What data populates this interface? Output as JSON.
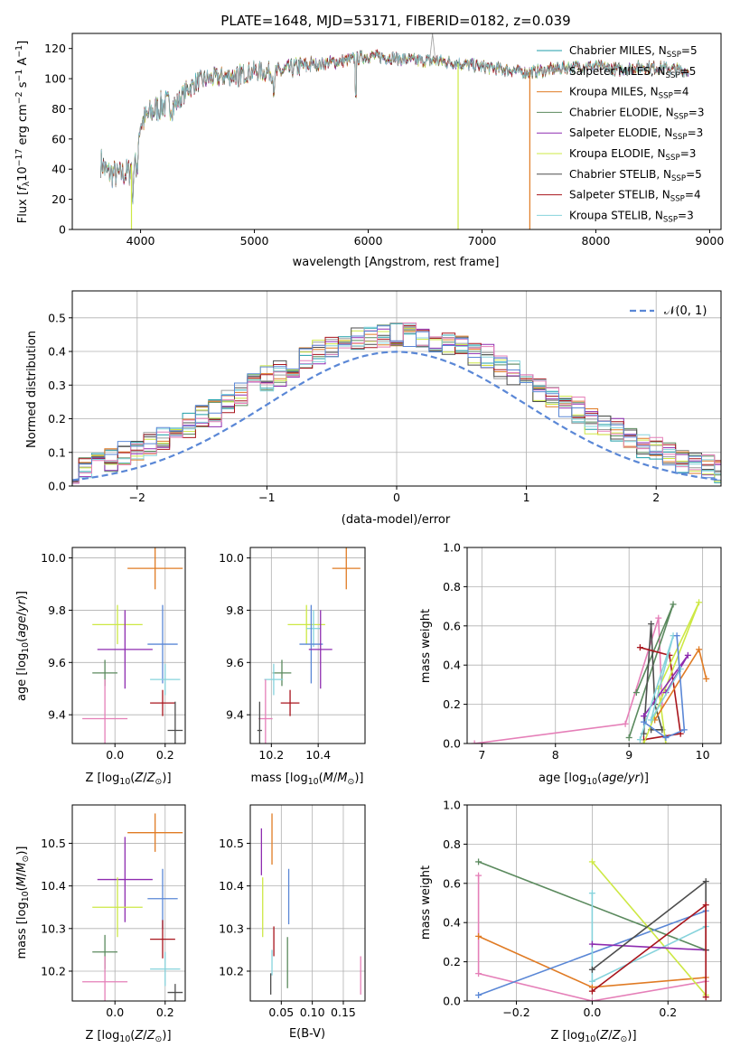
{
  "title": "PLATE=1648, MJD=53171, FIBERID=0182, z=0.039",
  "colors": {
    "Chabrier MILES": "#1f9ea8",
    "Salpeter MILES": "#9c9c9c",
    "Kroupa MILES": "#e07b24",
    "Chabrier ELODIE": "#5b8a5e",
    "Salpeter ELODIE": "#8e2cb0",
    "Kroupa ELODIE": "#cde844",
    "Chabrier STELIB": "#4d4d4d",
    "Salpeter STELIB": "#a8141c",
    "Kroupa STELIB": "#86d3dc",
    "pink": "#e57fb8",
    "blue": "#5a87d6"
  },
  "chart_data": [
    {
      "type": "line",
      "name": "spectrum",
      "xlabel": "wavelength [Angstrom, rest frame]",
      "ylabel": "Flux [f_λ 10⁻¹⁷ erg cm⁻² s⁻¹ A⁻¹]",
      "xlim": [
        3400,
        9100
      ],
      "ylim": [
        0,
        130
      ],
      "xticks": [
        4000,
        5000,
        6000,
        7000,
        8000,
        9000
      ],
      "yticks": [
        0,
        20,
        40,
        60,
        80,
        100,
        120
      ],
      "grid": false,
      "legend_position": "top-right",
      "legend": [
        {
          "label": "Chabrier MILES, N",
          "sub": "SSP",
          "tail": "=5",
          "color": "#1f9ea8"
        },
        {
          "label": "Salpeter MILES, N",
          "sub": "SSP",
          "tail": "=5",
          "color": "#9c9c9c"
        },
        {
          "label": "Kroupa MILES, N",
          "sub": "SSP",
          "tail": "=4",
          "color": "#e07b24"
        },
        {
          "label": "Chabrier ELODIE, N",
          "sub": "SSP",
          "tail": "=3",
          "color": "#5b8a5e"
        },
        {
          "label": "Salpeter ELODIE, N",
          "sub": "SSP",
          "tail": "=3",
          "color": "#8e2cb0"
        },
        {
          "label": "Kroupa ELODIE, N",
          "sub": "SSP",
          "tail": "=3",
          "color": "#cde844"
        },
        {
          "label": "Chabrier STELIB, N",
          "sub": "SSP",
          "tail": "=5",
          "color": "#4d4d4d"
        },
        {
          "label": "Salpeter STELIB, N",
          "sub": "SSP",
          "tail": "=4",
          "color": "#a8141c"
        },
        {
          "label": "Kroupa STELIB, N",
          "sub": "SSP",
          "tail": "=3",
          "color": "#86d3dc"
        }
      ],
      "continuum": [
        [
          3650,
          45
        ],
        [
          3700,
          38
        ],
        [
          3800,
          36
        ],
        [
          3900,
          38
        ],
        [
          3950,
          50
        ],
        [
          4000,
          70
        ],
        [
          4100,
          78
        ],
        [
          4200,
          83
        ],
        [
          4300,
          82
        ],
        [
          4400,
          92
        ],
        [
          4500,
          98
        ],
        [
          4600,
          100
        ],
        [
          4800,
          102
        ],
        [
          5000,
          105
        ],
        [
          5200,
          104
        ],
        [
          5400,
          108
        ],
        [
          5600,
          110
        ],
        [
          5800,
          112
        ],
        [
          6000,
          115
        ],
        [
          6200,
          114
        ],
        [
          6400,
          112
        ],
        [
          6600,
          112
        ],
        [
          6800,
          110
        ],
        [
          7000,
          108
        ],
        [
          7200,
          106
        ],
        [
          7400,
          104
        ],
        [
          7600,
          106
        ],
        [
          7800,
          108
        ],
        [
          8000,
          108
        ],
        [
          8200,
          106
        ],
        [
          8400,
          108
        ],
        [
          8600,
          107
        ],
        [
          8820,
          105
        ]
      ],
      "dropouts": [
        {
          "x": 3920,
          "color": "#cde844"
        },
        {
          "x": 6790,
          "color": "#cde844"
        },
        {
          "x": 7420,
          "color": "#e07b24"
        }
      ],
      "spike": {
        "x": 6565,
        "y": 130
      }
    },
    {
      "type": "histogram",
      "name": "residuals",
      "xlabel": "(data-model)/error",
      "ylabel": "Normed distribution",
      "xlim": [
        -2.5,
        2.5
      ],
      "ylim": [
        0,
        0.58
      ],
      "xticks": [
        -2,
        -1,
        0,
        1,
        2
      ],
      "yticks": [
        0.0,
        0.1,
        0.2,
        0.3,
        0.4,
        0.5
      ],
      "grid": true,
      "legend": "𝒩(0, 1)",
      "reference_color": "#5a87d6"
    },
    {
      "type": "scatter",
      "name": "age-vs-Z",
      "xlabel": "Z [log₁₀(Z/Z⊙)]",
      "ylabel": "age  [log₁₀(age/yr)]",
      "xlim": [
        -0.17,
        0.28
      ],
      "ylim": [
        9.29,
        10.04
      ],
      "xticks": [
        0.0,
        0.2
      ],
      "yticks": [
        9.4,
        9.6,
        9.8,
        10.0
      ],
      "grid": true,
      "points": [
        {
          "color": "#e07b24",
          "x": 0.16,
          "xerr": 0.11,
          "y": 9.96,
          "yerr": 0.08
        },
        {
          "color": "#cde844",
          "x": 0.01,
          "xerr": 0.1,
          "y": 9.745,
          "yerr": 0.075
        },
        {
          "color": "#8e2cb0",
          "x": 0.04,
          "xerr": 0.11,
          "y": 9.65,
          "yerr": 0.15
        },
        {
          "color": "#5a87d6",
          "x": 0.19,
          "xerr": 0.06,
          "y": 9.67,
          "yerr": 0.15
        },
        {
          "color": "#5b8a5e",
          "x": -0.04,
          "xerr": 0.05,
          "y": 9.56,
          "yerr": 0.05
        },
        {
          "color": "#86d3dc",
          "x": 0.2,
          "xerr": 0.06,
          "y": 9.535,
          "yerr": 0.06
        },
        {
          "color": "#a8141c",
          "x": 0.19,
          "xerr": 0.05,
          "y": 9.445,
          "yerr": 0.05
        },
        {
          "color": "#e57fb8",
          "x": -0.04,
          "xerr": 0.09,
          "y": 9.385,
          "yerr": 0.15
        },
        {
          "color": "#4d4d4d",
          "x": 0.24,
          "xerr": 0.03,
          "y": 9.34,
          "yerr": 0.11
        }
      ]
    },
    {
      "type": "scatter",
      "name": "age-vs-mass",
      "xlabel": "mass [log₁₀(M/M⊙)]",
      "ylabel": "",
      "xlim": [
        10.11,
        10.6
      ],
      "ylim": [
        9.29,
        10.04
      ],
      "xticks": [
        10.2,
        10.4
      ],
      "yticks": [
        9.4,
        9.6,
        9.8,
        10.0
      ],
      "grid": true,
      "points": [
        {
          "color": "#e07b24",
          "x": 10.52,
          "xerr": 0.06,
          "y": 9.96,
          "yerr": 0.08
        },
        {
          "color": "#cde844",
          "x": 10.35,
          "xerr": 0.08,
          "y": 9.745,
          "yerr": 0.075
        },
        {
          "color": "#86d3dc",
          "x": 10.38,
          "xerr": 0.03,
          "y": 9.73,
          "yerr": 0.07
        },
        {
          "color": "#5a87d6",
          "x": 10.37,
          "xerr": 0.05,
          "y": 9.67,
          "yerr": 0.15
        },
        {
          "color": "#8e2cb0",
          "x": 10.41,
          "xerr": 0.05,
          "y": 9.65,
          "yerr": 0.15
        },
        {
          "color": "#5b8a5e",
          "x": 10.245,
          "xerr": 0.04,
          "y": 9.56,
          "yerr": 0.05
        },
        {
          "color": "#86d3dc",
          "x": 10.21,
          "xerr": 0.04,
          "y": 9.535,
          "yerr": 0.06
        },
        {
          "color": "#a8141c",
          "x": 10.28,
          "xerr": 0.04,
          "y": 9.445,
          "yerr": 0.05
        },
        {
          "color": "#e57fb8",
          "x": 10.175,
          "xerr": 0.03,
          "y": 9.385,
          "yerr": 0.15
        },
        {
          "color": "#4d4d4d",
          "x": 10.15,
          "xerr": 0.01,
          "y": 9.34,
          "yerr": 0.11
        }
      ]
    },
    {
      "type": "line",
      "name": "mass-weight-vs-age",
      "xlabel": "age  [log₁₀(age/yr)]",
      "ylabel": "mass weight",
      "xlim": [
        6.8,
        10.25
      ],
      "ylim": [
        0,
        1.0
      ],
      "xticks": [
        7,
        8,
        9,
        10
      ],
      "yticks": [
        0.0,
        0.2,
        0.4,
        0.6,
        0.8,
        1.0
      ],
      "grid": true,
      "series": [
        {
          "color": "#e57fb8",
          "points": [
            [
              6.9,
              0.0
            ],
            [
              8.95,
              0.1
            ],
            [
              9.4,
              0.64
            ],
            [
              9.45,
              0.2
            ]
          ]
        },
        {
          "color": "#5b8a5e",
          "points": [
            [
              9.0,
              0.03
            ],
            [
              9.6,
              0.71
            ],
            [
              9.1,
              0.26
            ]
          ]
        },
        {
          "color": "#4d4d4d",
          "points": [
            [
              9.2,
              0.05
            ],
            [
              9.3,
              0.61
            ],
            [
              9.35,
              0.2
            ],
            [
              9.45,
              0.07
            ],
            [
              9.3,
              0.07
            ]
          ]
        },
        {
          "color": "#a8141c",
          "points": [
            [
              9.15,
              0.49
            ],
            [
              9.55,
              0.45
            ],
            [
              9.7,
              0.05
            ],
            [
              9.2,
              0.02
            ]
          ]
        },
        {
          "color": "#cde844",
          "points": [
            [
              9.2,
              0.0
            ],
            [
              9.95,
              0.72
            ],
            [
              9.4,
              0.28
            ],
            [
              9.5,
              0.0
            ]
          ]
        },
        {
          "color": "#e07b24",
          "points": [
            [
              9.35,
              0.12
            ],
            [
              9.95,
              0.48
            ],
            [
              10.05,
              0.33
            ]
          ]
        },
        {
          "color": "#8e2cb0",
          "points": [
            [
              9.2,
              0.14
            ],
            [
              9.8,
              0.45
            ],
            [
              9.5,
              0.26
            ]
          ]
        },
        {
          "color": "#86d3dc",
          "points": [
            [
              9.15,
              0.02
            ],
            [
              9.6,
              0.55
            ],
            [
              9.3,
              0.12
            ],
            [
              9.7,
              0.38
            ]
          ]
        },
        {
          "color": "#5a87d6",
          "points": [
            [
              9.2,
              0.11
            ],
            [
              9.5,
              0.03
            ],
            [
              9.75,
              0.07
            ],
            [
              9.65,
              0.55
            ]
          ]
        }
      ]
    },
    {
      "type": "scatter",
      "name": "mass-vs-Z",
      "xlabel": "Z [log₁₀(Z/Z⊙)]",
      "ylabel": "mass [log₁₀(M/M⊙)]",
      "xlim": [
        -0.17,
        0.28
      ],
      "ylim": [
        10.13,
        10.59
      ],
      "xticks": [
        0.0,
        0.2
      ],
      "yticks": [
        10.2,
        10.3,
        10.4,
        10.5
      ],
      "grid": true,
      "points": [
        {
          "color": "#e07b24",
          "x": 0.16,
          "xerr": 0.11,
          "y": 10.525,
          "yerr": 0.045
        },
        {
          "color": "#8e2cb0",
          "x": 0.04,
          "xerr": 0.11,
          "y": 10.415,
          "yerr": 0.1
        },
        {
          "color": "#5a87d6",
          "x": 0.19,
          "xerr": 0.06,
          "y": 10.37,
          "yerr": 0.07
        },
        {
          "color": "#cde844",
          "x": 0.01,
          "xerr": 0.1,
          "y": 10.35,
          "yerr": 0.07
        },
        {
          "color": "#a8141c",
          "x": 0.19,
          "xerr": 0.05,
          "y": 10.275,
          "yerr": 0.045
        },
        {
          "color": "#5b8a5e",
          "x": -0.04,
          "xerr": 0.05,
          "y": 10.245,
          "yerr": 0.04
        },
        {
          "color": "#86d3dc",
          "x": 0.2,
          "xerr": 0.06,
          "y": 10.205,
          "yerr": 0.04
        },
        {
          "color": "#e57fb8",
          "x": -0.04,
          "xerr": 0.09,
          "y": 10.175,
          "yerr": 0.06
        },
        {
          "color": "#4d4d4d",
          "x": 0.24,
          "xerr": 0.03,
          "y": 10.15,
          "yerr": 0.02
        }
      ]
    },
    {
      "type": "scatter",
      "name": "mass-vs-EBV",
      "xlabel": "E(B-V)",
      "ylabel": "",
      "xlim": [
        0.0,
        0.185
      ],
      "ylim": [
        10.13,
        10.59
      ],
      "xticks": [
        0.05,
        0.1,
        0.15
      ],
      "xticklabels": [
        "0.05",
        "0.10",
        "0.15"
      ],
      "yticks": [
        10.2,
        10.3,
        10.4,
        10.5
      ],
      "grid": true,
      "points": [
        {
          "color": "#8e2cb0",
          "x": 0.018,
          "y": 10.48,
          "yerr": 0.055
        },
        {
          "color": "#cde844",
          "x": 0.02,
          "y": 10.35,
          "yerr": 0.07
        },
        {
          "color": "#e07b24",
          "x": 0.035,
          "y": 10.51,
          "yerr": 0.06
        },
        {
          "color": "#a8141c",
          "x": 0.038,
          "y": 10.27,
          "yerr": 0.035
        },
        {
          "color": "#86d3dc",
          "x": 0.035,
          "y": 10.22,
          "yerr": 0.03
        },
        {
          "color": "#4d4d4d",
          "x": 0.033,
          "y": 10.17,
          "yerr": 0.025
        },
        {
          "color": "#5b8a5e",
          "x": 0.06,
          "y": 10.22,
          "yerr": 0.06
        },
        {
          "color": "#5a87d6",
          "x": 0.062,
          "y": 10.375,
          "yerr": 0.065
        },
        {
          "color": "#e57fb8",
          "x": 0.178,
          "y": 10.19,
          "yerr": 0.045
        }
      ]
    },
    {
      "type": "line",
      "name": "mass-weight-vs-Z",
      "xlabel": "Z [log₁₀(Z/Z⊙)]",
      "ylabel": "mass weight",
      "xlim": [
        -0.33,
        0.34
      ],
      "ylim": [
        0,
        1.0
      ],
      "xticks": [
        -0.2,
        0.0,
        0.2
      ],
      "yticks": [
        0.0,
        0.2,
        0.4,
        0.6,
        0.8,
        1.0
      ],
      "grid": true,
      "series": [
        {
          "color": "#5b8a5e",
          "points": [
            [
              -0.3,
              0.71
            ],
            [
              0.3,
              0.26
            ]
          ]
        },
        {
          "color": "#e57fb8",
          "points": [
            [
              -0.3,
              0.64
            ],
            [
              -0.3,
              0.14
            ],
            [
              0.0,
              0.0
            ],
            [
              0.3,
              0.1
            ]
          ]
        },
        {
          "color": "#e07b24",
          "points": [
            [
              -0.3,
              0.33
            ],
            [
              0.0,
              0.07
            ],
            [
              0.3,
              0.12
            ]
          ]
        },
        {
          "color": "#5a87d6",
          "points": [
            [
              -0.3,
              0.03
            ],
            [
              0.3,
              0.46
            ]
          ]
        },
        {
          "color": "#cde844",
          "points": [
            [
              0.0,
              0.71
            ],
            [
              0.3,
              0.03
            ]
          ]
        },
        {
          "color": "#86d3dc",
          "points": [
            [
              0.0,
              0.55
            ],
            [
              0.0,
              0.1
            ],
            [
              0.3,
              0.38
            ]
          ]
        },
        {
          "color": "#8e2cb0",
          "points": [
            [
              0.0,
              0.29
            ],
            [
              0.3,
              0.26
            ]
          ]
        },
        {
          "color": "#4d4d4d",
          "points": [
            [
              0.0,
              0.16
            ],
            [
              0.3,
              0.61
            ],
            [
              0.3,
              0.26
            ]
          ]
        },
        {
          "color": "#a8141c",
          "points": [
            [
              0.0,
              0.05
            ],
            [
              0.3,
              0.49
            ],
            [
              0.3,
              0.02
            ]
          ]
        }
      ]
    }
  ]
}
